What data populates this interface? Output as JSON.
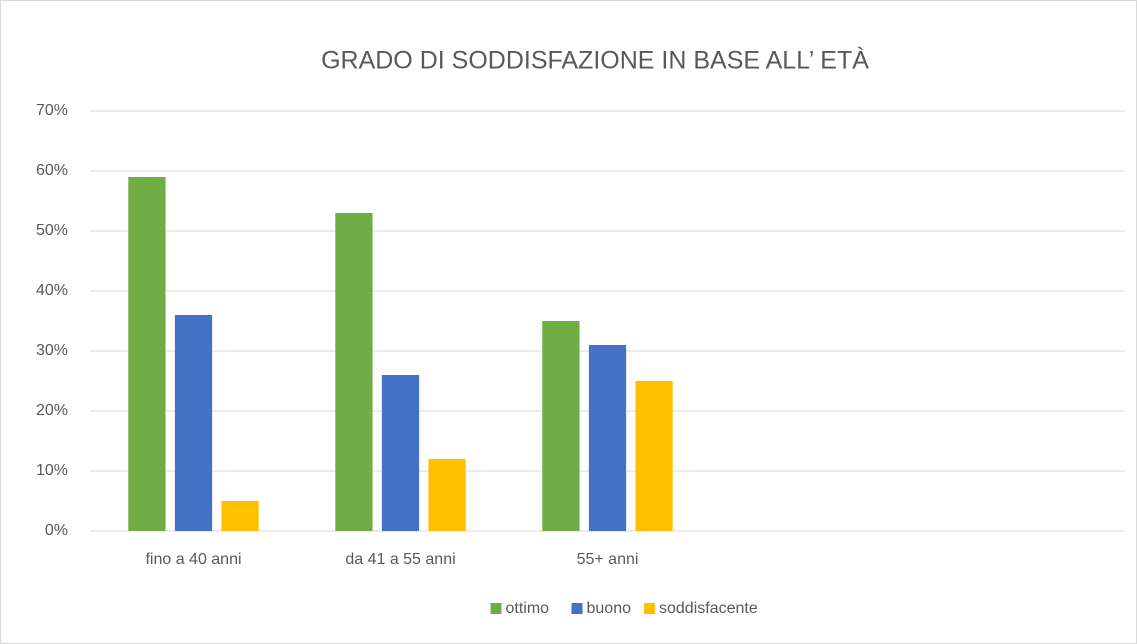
{
  "chart_data": {
    "type": "bar",
    "title": "GRADO DI SODDISFAZIONE IN BASE ALL’ ETÀ",
    "categories": [
      "fino a 40 anni",
      "da 41 a 55 anni",
      "55+ anni",
      null,
      null
    ],
    "series": [
      {
        "name": "ottimo",
        "color": "#70ad47",
        "values": [
          59,
          53,
          35,
          null,
          null
        ]
      },
      {
        "name": "buono",
        "color": "#4472c4",
        "values": [
          36,
          26,
          31,
          null,
          null
        ]
      },
      {
        "name": "soddisfacente",
        "color": "#ffc000",
        "values": [
          5,
          12,
          25,
          null,
          null
        ]
      }
    ],
    "ylim": [
      0,
      70
    ],
    "yticks": [
      {
        "value": 0,
        "label": "0%"
      },
      {
        "value": 10,
        "label": "10%"
      },
      {
        "value": 20,
        "label": "20%"
      },
      {
        "value": 30,
        "label": "30%"
      },
      {
        "value": 40,
        "label": "40%"
      },
      {
        "value": 50,
        "label": "50%"
      },
      {
        "value": 60,
        "label": "60%"
      },
      {
        "value": 70,
        "label": "70%"
      }
    ],
    "grid": true,
    "legend": "bottom"
  }
}
